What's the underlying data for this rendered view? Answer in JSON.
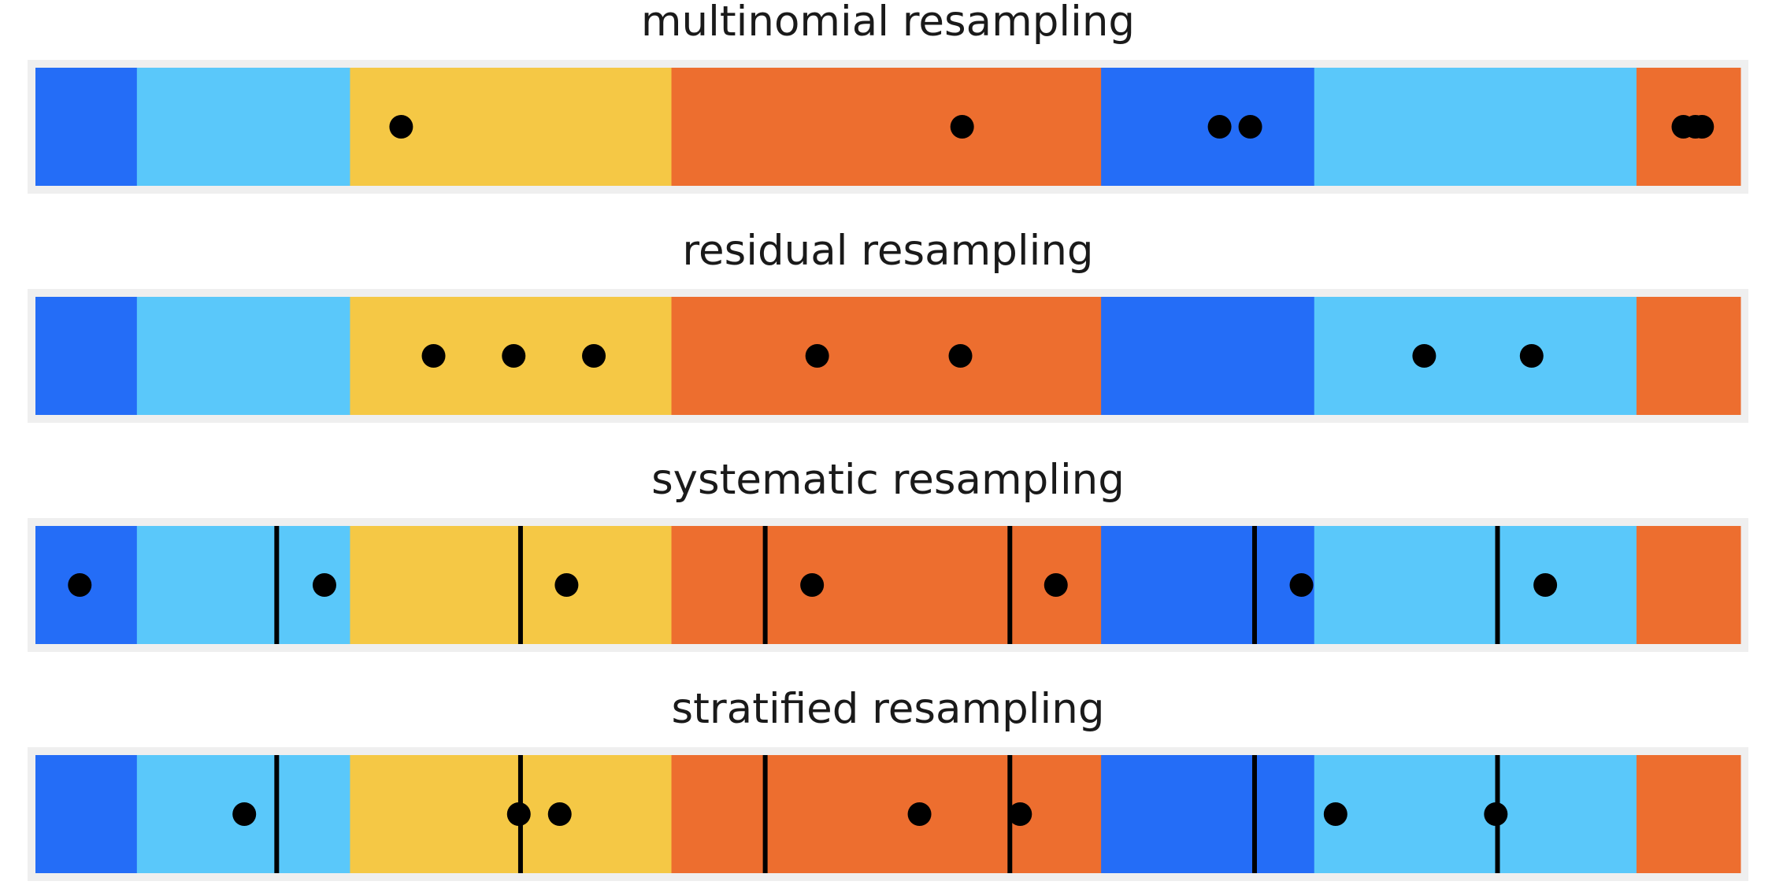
{
  "chart_data": [
    {
      "type": "bar",
      "title": "multinomial resampling",
      "segments": [
        {
          "start": 0.0,
          "end": 0.0595,
          "color": "#246DF7"
        },
        {
          "start": 0.0595,
          "end": 0.1845,
          "color": "#5AC8FA"
        },
        {
          "start": 0.1845,
          "end": 0.373,
          "color": "#F5C845"
        },
        {
          "start": 0.373,
          "end": 0.625,
          "color": "#ED6E2F"
        },
        {
          "start": 0.625,
          "end": 0.75,
          "color": "#246DF7"
        },
        {
          "start": 0.75,
          "end": 0.939,
          "color": "#5AC8FA"
        },
        {
          "start": 0.939,
          "end": 1.0,
          "color": "#ED6E2F"
        }
      ],
      "points": [
        0.2145,
        0.5435,
        0.6945,
        0.7125,
        0.9665,
        0.9735,
        0.9775
      ],
      "lines": []
    },
    {
      "type": "bar",
      "title": "residual resampling",
      "segments": [
        {
          "start": 0.0,
          "end": 0.0595,
          "color": "#246DF7"
        },
        {
          "start": 0.0595,
          "end": 0.1845,
          "color": "#5AC8FA"
        },
        {
          "start": 0.1845,
          "end": 0.373,
          "color": "#F5C845"
        },
        {
          "start": 0.373,
          "end": 0.625,
          "color": "#ED6E2F"
        },
        {
          "start": 0.625,
          "end": 0.75,
          "color": "#246DF7"
        },
        {
          "start": 0.75,
          "end": 0.939,
          "color": "#5AC8FA"
        },
        {
          "start": 0.939,
          "end": 1.0,
          "color": "#ED6E2F"
        }
      ],
      "points": [
        0.2335,
        0.2805,
        0.3275,
        0.4585,
        0.5425,
        0.8145,
        0.8775
      ],
      "lines": []
    },
    {
      "type": "bar",
      "title": "systematic resampling",
      "segments": [
        {
          "start": 0.0,
          "end": 0.0595,
          "color": "#246DF7"
        },
        {
          "start": 0.0595,
          "end": 0.1845,
          "color": "#5AC8FA"
        },
        {
          "start": 0.1845,
          "end": 0.373,
          "color": "#F5C845"
        },
        {
          "start": 0.373,
          "end": 0.625,
          "color": "#ED6E2F"
        },
        {
          "start": 0.625,
          "end": 0.75,
          "color": "#246DF7"
        },
        {
          "start": 0.75,
          "end": 0.939,
          "color": "#5AC8FA"
        },
        {
          "start": 0.939,
          "end": 1.0,
          "color": "#ED6E2F"
        }
      ],
      "points": [
        0.026,
        0.1695,
        0.3115,
        0.4555,
        0.5985,
        0.7425,
        0.8855
      ],
      "lines": [
        0.1415,
        0.2845,
        0.428,
        0.5715,
        0.715,
        0.8575
      ]
    },
    {
      "type": "bar",
      "title": "stratified resampling",
      "segments": [
        {
          "start": 0.0,
          "end": 0.0595,
          "color": "#246DF7"
        },
        {
          "start": 0.0595,
          "end": 0.1845,
          "color": "#5AC8FA"
        },
        {
          "start": 0.1845,
          "end": 0.373,
          "color": "#F5C845"
        },
        {
          "start": 0.373,
          "end": 0.625,
          "color": "#ED6E2F"
        },
        {
          "start": 0.625,
          "end": 0.75,
          "color": "#246DF7"
        },
        {
          "start": 0.75,
          "end": 0.939,
          "color": "#5AC8FA"
        },
        {
          "start": 0.939,
          "end": 1.0,
          "color": "#ED6E2F"
        }
      ],
      "points": [
        0.1225,
        0.2835,
        0.3075,
        0.5185,
        0.5775,
        0.7625,
        0.8565
      ],
      "lines": [
        0.1415,
        0.2845,
        0.428,
        0.5715,
        0.715,
        0.8575
      ]
    }
  ]
}
